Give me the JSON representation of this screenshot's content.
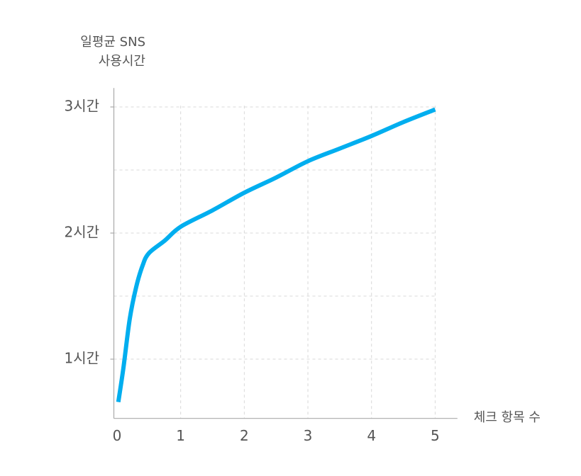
{
  "chart_data": {
    "type": "line",
    "ylabel": [
      "일평균 SNS",
      "사용시간"
    ],
    "xlabel": "체크 항목 수",
    "x": [
      0.02,
      0.1,
      0.2,
      0.3,
      0.4,
      0.5,
      0.75,
      1,
      1.5,
      2,
      2.5,
      3,
      3.5,
      4,
      4.5,
      5
    ],
    "values": [
      0.66,
      0.93,
      1.32,
      1.57,
      1.74,
      1.84,
      1.94,
      2.05,
      2.18,
      2.32,
      2.44,
      2.57,
      2.67,
      2.77,
      2.88,
      2.98
    ],
    "color": "#00aeef",
    "xlim": [
      -0.05,
      5.35
    ],
    "xticks": [
      0,
      1,
      2,
      3,
      4,
      5
    ],
    "ylim": [
      0.53,
      3.15
    ],
    "yticks": [
      {
        "value": 1,
        "label": "1시간"
      },
      {
        "value": 2,
        "label": "2시간"
      },
      {
        "value": 3,
        "label": "3시간"
      }
    ],
    "y_minor_ticks": [
      1.5,
      2.5
    ],
    "grid": true
  }
}
